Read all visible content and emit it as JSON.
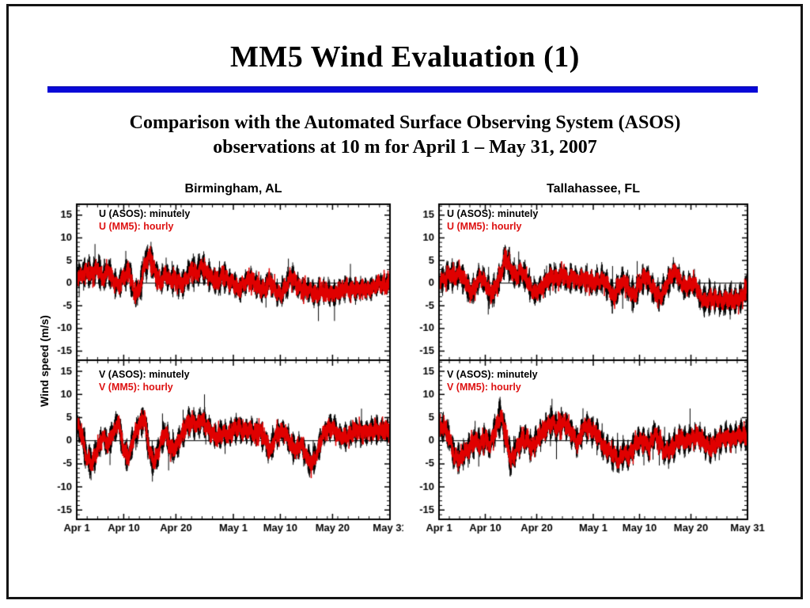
{
  "slide": {
    "title": "MM5 Wind Evaluation (1)",
    "subtitle_line1": "Comparison with the Automated Surface Observing System (ASOS)",
    "subtitle_line2": "observations at 10 m for April 1 – May 31, 2007",
    "accent_rule_color": "#0808D8"
  },
  "chart_data": {
    "type": "scatter",
    "ylabel": "Wind speed (m/s)",
    "ylim": [
      -17.0,
      17.4
    ],
    "yticks": [
      -15,
      -10,
      -5,
      0,
      5,
      10,
      15
    ],
    "y_minor_step": 1,
    "xtick_labels": [
      "Apr 1",
      "Apr 10",
      "Apr 20",
      "May 1",
      "May 10",
      "May 20",
      "May 31"
    ],
    "xtick_days": [
      0,
      9,
      19,
      30,
      39,
      49,
      60
    ],
    "x_minor_step_days": 2,
    "x_range_days": [
      0,
      60
    ],
    "series_colors": {
      "obs": "#000000",
      "model": "#e00000"
    },
    "obs_sampling": "minutely",
    "model_sampling": "hourly",
    "blocks": [
      {
        "title": "Birmingham, AL",
        "panels": [
          {
            "component": "U",
            "legend": [
              "U (ASOS): minutely",
              "U (MM5): hourly"
            ],
            "seed": 11,
            "daily_mean": [
              1.5,
              2,
              2.5,
              2,
              3.5,
              1,
              3,
              0.5,
              -0.5,
              1.5,
              3,
              -2.5,
              -1.5,
              4,
              6,
              2.5,
              0,
              2,
              0.5,
              1,
              -0.5,
              1,
              3,
              2,
              3.5,
              2,
              1,
              0,
              2,
              0.5,
              0,
              -1.5,
              -0.5,
              1,
              0,
              -1,
              -1.5,
              0.5,
              -1.5,
              -2.5,
              -1,
              1.5,
              0,
              -1.5,
              -1.5,
              -2,
              -2.5,
              -1.5,
              -2,
              -2.5,
              -2,
              -1.5,
              -1,
              -1.5,
              -1.5,
              -1,
              -1.5,
              -1,
              0,
              -0.5,
              0
            ],
            "daily_spread": [
              2.5,
              3,
              3.5,
              3,
              3.5,
              3,
              3.5,
              3,
              2.5,
              3,
              3.5,
              3,
              3,
              3.5,
              3.5,
              3,
              2.5,
              3,
              2.5,
              3.5,
              3,
              3,
              3.5,
              3.5,
              3.5,
              3,
              3,
              3,
              3.5,
              2.5,
              2.5,
              3,
              2.5,
              2.5,
              2.5,
              2.5,
              3,
              2.5,
              2.5,
              3,
              2.5,
              3,
              2.5,
              2.5,
              2.5,
              2.5,
              3,
              2.5,
              2.5,
              3,
              2.5,
              2.5,
              2.5,
              2.5,
              2.5,
              2,
              2.5,
              2,
              2,
              2,
              2
            ]
          },
          {
            "component": "V",
            "legend": [
              "V (ASOS): minutely",
              "V (MM5): hourly"
            ],
            "seed": 22,
            "daily_mean": [
              4,
              1,
              -4,
              -4.5,
              -2,
              1,
              -1,
              2,
              4,
              -2,
              -3.5,
              1,
              3.5,
              5,
              -3,
              -4.5,
              -1,
              2,
              -2,
              -1.5,
              1,
              3.5,
              4,
              3.5,
              4.5,
              3,
              1.5,
              0.5,
              2,
              1,
              2.5,
              3,
              2,
              2.5,
              1.5,
              2,
              0.5,
              -2.5,
              1,
              2,
              1.5,
              -1,
              -2,
              -0.5,
              -3.5,
              -5,
              -3,
              1,
              2.5,
              3,
              1.5,
              0.5,
              1,
              2,
              2.5,
              1.5,
              2,
              2.5,
              2,
              2.5,
              2
            ],
            "daily_spread": [
              2.5,
              3.5,
              3.5,
              3,
              3,
              2.5,
              3,
              3,
              3,
              3,
              3.5,
              3,
              3,
              3.5,
              3.5,
              3,
              3,
              3,
              3,
              3,
              3,
              3,
              3.5,
              3,
              3,
              3,
              2.5,
              2.5,
              3,
              2.5,
              3,
              3,
              2.5,
              2.5,
              3,
              2.5,
              3,
              3,
              3,
              2.5,
              2.5,
              3,
              3,
              2.5,
              3,
              3.5,
              3,
              2.5,
              2.5,
              3,
              2.5,
              2.5,
              2.5,
              2.5,
              3,
              2.5,
              2.5,
              3,
              2.5,
              2.5,
              2.5
            ]
          }
        ]
      },
      {
        "title": "Tallahassee, FL",
        "panels": [
          {
            "component": "U",
            "legend": [
              "U (ASOS): minutely",
              "U (MM5): hourly"
            ],
            "seed": 33,
            "daily_mean": [
              0.5,
              1,
              2,
              1.5,
              2.5,
              0.5,
              -2,
              -1,
              1.5,
              0,
              -2.5,
              -1,
              2,
              6,
              3,
              1.5,
              2.5,
              1,
              -1.5,
              -2,
              -1,
              0.5,
              1.5,
              1,
              2,
              0.5,
              1.5,
              0.5,
              1,
              0.5,
              0,
              0.5,
              1,
              -1,
              -3,
              -0.5,
              0.5,
              -1.5,
              -3,
              0,
              1.5,
              0.5,
              -2,
              -3,
              -1,
              1.5,
              2.5,
              0.5,
              -1,
              0,
              -0.5,
              -3.5,
              -4,
              -3,
              -3.5,
              -4,
              -3.5,
              -4,
              -3.5,
              -3,
              -0.5
            ],
            "daily_spread": [
              2.5,
              3,
              3,
              3,
              3,
              3,
              3,
              2.5,
              3,
              3,
              3.5,
              3,
              3,
              3.5,
              3.5,
              3,
              3,
              3,
              3,
              3,
              2.5,
              3,
              3,
              2.5,
              3,
              2.5,
              3,
              2.5,
              3,
              2.5,
              2.5,
              3,
              3,
              3,
              3.5,
              3,
              3,
              3,
              3.5,
              3,
              3,
              3,
              3,
              3.5,
              3,
              3,
              3,
              2.5,
              3,
              2.5,
              2.5,
              3,
              3.5,
              3,
              3,
              3,
              3,
              3.5,
              3,
              3,
              2.5
            ]
          },
          {
            "component": "V",
            "legend": [
              "V (ASOS): minutely",
              "V (MM5): hourly"
            ],
            "seed": 44,
            "daily_mean": [
              2,
              3,
              0.5,
              -3.5,
              -4,
              -2.5,
              -1.5,
              0,
              -1,
              0.5,
              -1,
              2.5,
              5.5,
              1,
              -4.5,
              -2,
              0,
              0.5,
              -1.5,
              0,
              1.5,
              3,
              4,
              2.5,
              4,
              3,
              1.5,
              -0.5,
              2.5,
              3,
              2,
              1,
              -1.5,
              -2,
              -3,
              -4,
              -2.5,
              -3.5,
              -1,
              0,
              -0.5,
              -1,
              1.5,
              -0.5,
              -2.5,
              -2,
              -0.5,
              0.5,
              -0.5,
              0.5,
              1,
              0.5,
              -1,
              -1.5,
              -0.5,
              0.5,
              1,
              0.5,
              1,
              1,
              1
            ],
            "daily_spread": [
              3,
              3,
              3,
              3.5,
              3,
              3,
              3,
              3,
              3,
              3,
              3,
              3.5,
              4,
              3.5,
              3.5,
              3,
              3,
              3,
              3,
              3,
              3,
              3,
              3.5,
              3,
              3,
              3,
              3,
              3,
              3,
              3,
              3,
              3,
              3,
              3,
              3.5,
              3.5,
              3,
              3,
              3,
              3,
              3,
              3,
              3,
              3,
              3,
              3,
              3,
              3,
              3,
              3,
              2.5,
              2.5,
              3,
              3,
              3,
              3,
              3,
              3,
              3,
              3,
              3
            ]
          }
        ]
      }
    ]
  }
}
